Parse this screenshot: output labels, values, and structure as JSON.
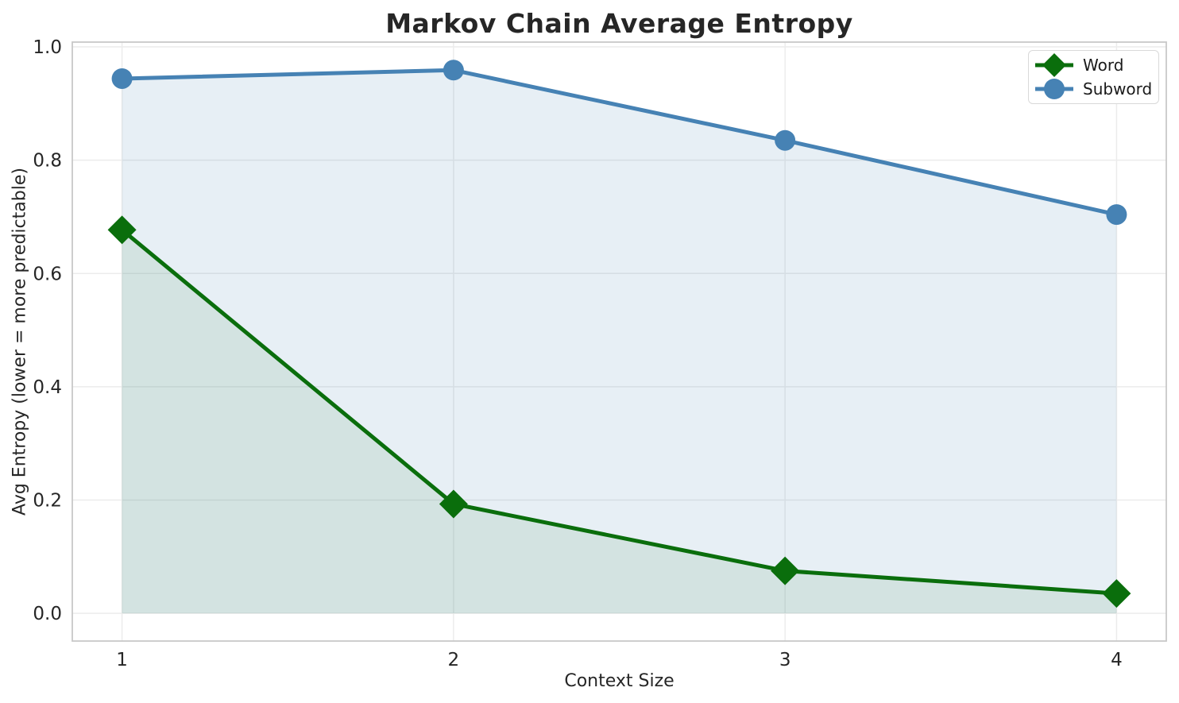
{
  "chart_data": {
    "type": "line",
    "title": "Markov Chain Average Entropy",
    "xlabel": "Context Size",
    "ylabel": "Avg Entropy (lower = more predictable)",
    "x": [
      1,
      2,
      3,
      4
    ],
    "xtick_labels": [
      "1",
      "2",
      "3",
      "4"
    ],
    "ytick_values": [
      0.0,
      0.2,
      0.4,
      0.6,
      0.8,
      1.0
    ],
    "ytick_labels": [
      "0.0",
      "0.2",
      "0.4",
      "0.6",
      "0.8",
      "1.0"
    ],
    "xlim": [
      0.85,
      4.15
    ],
    "ylim": [
      -0.049,
      1.0085
    ],
    "grid": true,
    "legend_position": "upper right",
    "series": [
      {
        "name": "Word",
        "marker": "diamond",
        "color": "#0a6e0c",
        "fill_opacity": 0.09,
        "values": [
          0.677,
          0.193,
          0.075,
          0.035
        ],
        "area_to_zero": true
      },
      {
        "name": "Subword",
        "marker": "circle",
        "color": "#4682b4",
        "fill_opacity": 0.13,
        "values": [
          0.944,
          0.959,
          0.835,
          0.704
        ],
        "area_to_zero": true
      }
    ],
    "style": {
      "grid_color": "#ececec",
      "spine_color": "#c8c8c8",
      "text_color": "#262626",
      "background": "#ffffff"
    }
  }
}
